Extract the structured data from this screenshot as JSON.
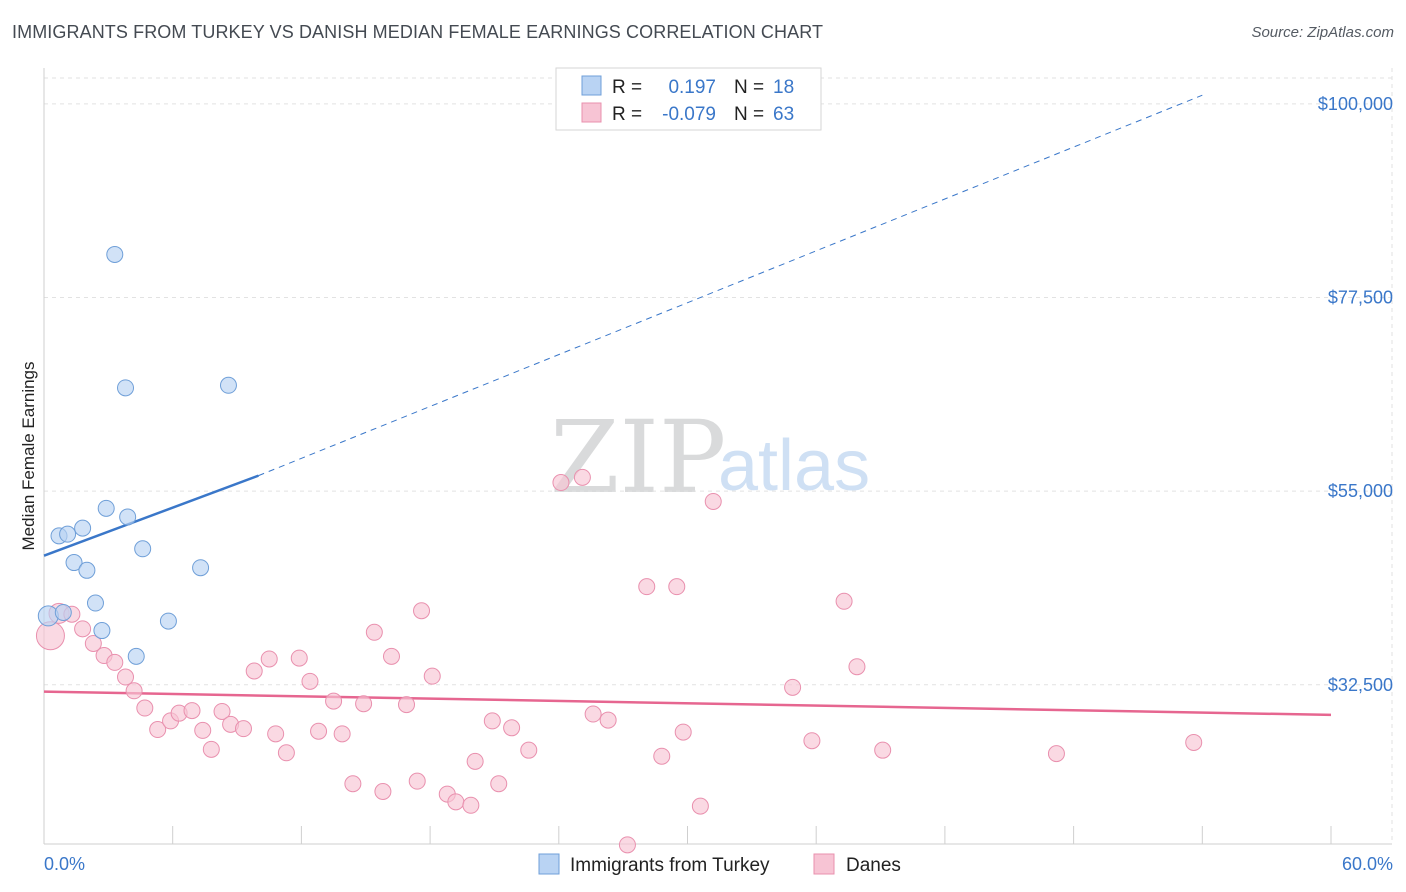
{
  "title": "IMMIGRANTS FROM TURKEY VS DANISH MEDIAN FEMALE EARNINGS CORRELATION CHART",
  "source": "Source: ZipAtlas.com",
  "watermark": {
    "zip": "ZIP",
    "atlas": "atlas"
  },
  "colors": {
    "blue": "#3a77c9",
    "blue_fill": "#b9d3f3",
    "blue_stroke": "#6f9fd8",
    "pink": "#e66690",
    "pink_fill": "#f7c4d4",
    "pink_stroke": "#e990ae"
  },
  "stats": [
    {
      "r_label": "R =",
      "r_value": "0.197",
      "n_label": "N =",
      "n_value": "18",
      "swatch": "blue"
    },
    {
      "r_label": "R =",
      "r_value": "-0.079",
      "n_label": "N =",
      "n_value": "63",
      "swatch": "pink"
    }
  ],
  "chart_data": {
    "type": "scatter",
    "title": "IMMIGRANTS FROM TURKEY VS DANISH MEDIAN FEMALE EARNINGS CORRELATION CHART",
    "xlabel": "",
    "ylabel": "Median Female Earnings",
    "xlim": [
      0,
      60
    ],
    "ylim": [
      14000,
      103000
    ],
    "x_tick_labels": [
      {
        "value": 0,
        "label": "0.0%"
      },
      {
        "value": 60,
        "label": "60.0%"
      }
    ],
    "y_ticks": [
      {
        "value": 32500,
        "label": "$32,500"
      },
      {
        "value": 55000,
        "label": "$55,000"
      },
      {
        "value": 77500,
        "label": "$77,500"
      },
      {
        "value": 100000,
        "label": "$100,000"
      }
    ],
    "grid": true,
    "legend_position": "bottom",
    "series": [
      {
        "name": "Immigrants from Turkey",
        "color": "blue",
        "points": [
          [
            0.2,
            40500,
            10
          ],
          [
            0.7,
            49800,
            8
          ],
          [
            1.1,
            50000,
            8
          ],
          [
            1.4,
            46700,
            8
          ],
          [
            1.8,
            50700,
            8
          ],
          [
            2.0,
            45800,
            8
          ],
          [
            2.4,
            42000,
            8
          ],
          [
            2.7,
            38800,
            8
          ],
          [
            2.9,
            53000,
            8
          ],
          [
            3.3,
            82500,
            8
          ],
          [
            3.8,
            67000,
            8
          ],
          [
            3.9,
            52000,
            8
          ],
          [
            4.3,
            35800,
            8
          ],
          [
            4.6,
            48300,
            8
          ],
          [
            5.8,
            39900,
            8
          ],
          [
            7.3,
            46100,
            8
          ],
          [
            8.6,
            67300,
            8
          ],
          [
            0.9,
            40900,
            8
          ]
        ],
        "trend": {
          "x0": 0,
          "y0": 47500,
          "x1": 10,
          "y1": 56800,
          "dash_to_x": 54,
          "dash_to_y": 101000
        }
      },
      {
        "name": "Danes",
        "color": "pink",
        "points": [
          [
            0.3,
            38200,
            14
          ],
          [
            0.7,
            40800,
            10
          ],
          [
            1.3,
            40700,
            8
          ],
          [
            1.8,
            39000,
            8
          ],
          [
            2.3,
            37300,
            8
          ],
          [
            2.8,
            35900,
            8
          ],
          [
            3.3,
            35100,
            8
          ],
          [
            3.8,
            33400,
            8
          ],
          [
            4.2,
            31800,
            8
          ],
          [
            4.7,
            29800,
            8
          ],
          [
            5.3,
            27300,
            8
          ],
          [
            5.9,
            28300,
            8
          ],
          [
            6.3,
            29200,
            8
          ],
          [
            6.9,
            29500,
            8
          ],
          [
            7.4,
            27200,
            8
          ],
          [
            7.8,
            25000,
            8
          ],
          [
            8.3,
            29400,
            8
          ],
          [
            8.7,
            27900,
            8
          ],
          [
            9.3,
            27400,
            8
          ],
          [
            9.8,
            34100,
            8
          ],
          [
            10.5,
            35500,
            8
          ],
          [
            10.8,
            26800,
            8
          ],
          [
            11.3,
            24600,
            8
          ],
          [
            11.9,
            35600,
            8
          ],
          [
            12.4,
            32900,
            8
          ],
          [
            12.8,
            27100,
            8
          ],
          [
            13.5,
            30600,
            8
          ],
          [
            13.9,
            26800,
            8
          ],
          [
            14.4,
            21000,
            8
          ],
          [
            14.9,
            30300,
            8
          ],
          [
            15.4,
            38600,
            8
          ],
          [
            15.8,
            20100,
            8
          ],
          [
            16.2,
            35800,
            8
          ],
          [
            16.9,
            30200,
            8
          ],
          [
            17.4,
            21300,
            8
          ],
          [
            17.6,
            41100,
            8
          ],
          [
            18.1,
            33500,
            8
          ],
          [
            18.8,
            19800,
            8
          ],
          [
            19.2,
            18900,
            8
          ],
          [
            19.9,
            18500,
            8
          ],
          [
            20.1,
            23600,
            8
          ],
          [
            20.9,
            28300,
            8
          ],
          [
            21.2,
            21000,
            8
          ],
          [
            21.8,
            27500,
            8
          ],
          [
            22.6,
            24900,
            8
          ],
          [
            24.1,
            56000,
            8
          ],
          [
            25.1,
            56600,
            8
          ],
          [
            25.6,
            29100,
            8
          ],
          [
            26.3,
            28400,
            8
          ],
          [
            27.2,
            13900,
            8
          ],
          [
            28.1,
            43900,
            8
          ],
          [
            28.8,
            24200,
            8
          ],
          [
            29.5,
            43900,
            8
          ],
          [
            29.8,
            27000,
            8
          ],
          [
            30.6,
            18400,
            8
          ],
          [
            31.2,
            53800,
            8
          ],
          [
            34.9,
            32200,
            8
          ],
          [
            35.8,
            26000,
            8
          ],
          [
            37.3,
            42200,
            8
          ],
          [
            37.9,
            34600,
            8
          ],
          [
            39.1,
            24900,
            8
          ],
          [
            47.2,
            24500,
            8
          ],
          [
            53.6,
            25800,
            8
          ]
        ],
        "trend": {
          "x0": 0,
          "y0": 31700,
          "x1": 60,
          "y1": 29000
        }
      }
    ]
  },
  "legend": [
    {
      "label": "Immigrants from Turkey",
      "swatch": "blue"
    },
    {
      "label": "Danes",
      "swatch": "pink"
    }
  ]
}
